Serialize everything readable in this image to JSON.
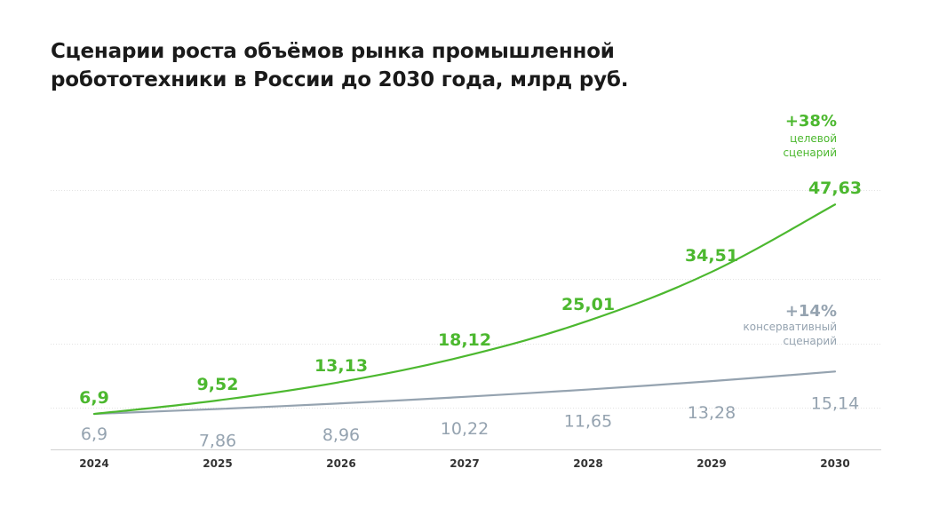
{
  "title": {
    "line1": "Сценарии роста объёмов рынка промышленной",
    "line2": "робототехники в России до 2030 года, млрд руб."
  },
  "annotations": {
    "target": {
      "pct": "+38%",
      "line1": "целевой",
      "line2": "сценарий"
    },
    "conservative": {
      "pct": "+14%",
      "line1": "консервативный",
      "line2": "сценарий"
    }
  },
  "colors": {
    "target": "#4cb82f",
    "conservative": "#95a3b0",
    "grid": "#e3e3e3"
  },
  "chart_data": {
    "type": "line",
    "title": "Сценарии роста объёмов рынка промышленной робототехники в России до 2030 года, млрд руб.",
    "categories": [
      "2024",
      "2025",
      "2026",
      "2027",
      "2028",
      "2029",
      "2030"
    ],
    "series": [
      {
        "key": "target",
        "values": [
          6.9,
          9.52,
          13.13,
          18.12,
          25.01,
          34.51,
          47.63
        ],
        "labels": [
          "6,9",
          "9,52",
          "13,13",
          "18,12",
          "25,01",
          "34,51",
          "47,63"
        ]
      },
      {
        "key": "conservative",
        "values": [
          6.9,
          7.86,
          8.96,
          10.22,
          11.65,
          13.28,
          15.14
        ],
        "labels": [
          "6,9",
          "7,86",
          "8,96",
          "10,22",
          "11,65",
          "13,28",
          "15,14"
        ]
      }
    ],
    "ylim": [
      0,
      52
    ],
    "grid": true,
    "xlabel": "",
    "ylabel": ""
  }
}
